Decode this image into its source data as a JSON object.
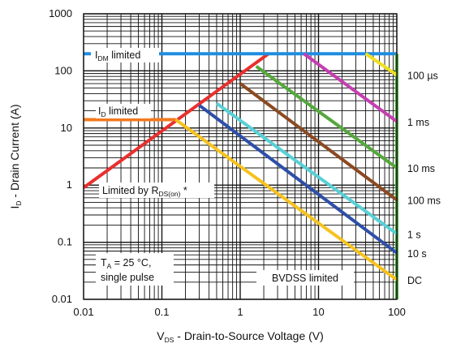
{
  "chart_data": {
    "type": "line",
    "x_scale": "log",
    "y_scale": "log",
    "xlim": [
      0.01,
      100
    ],
    "ylim": [
      0.01,
      1000
    ],
    "x_ticks": [
      "0.01",
      "0.1",
      "1",
      "10",
      "100"
    ],
    "y_ticks": [
      "1000",
      "100",
      "10",
      "1",
      "0.1",
      "0.01"
    ],
    "grid": true,
    "xlabel": {
      "main": "V",
      "sub": "DS",
      "rest": " - Drain-to-Source Voltage (V)"
    },
    "ylabel": {
      "main": "I",
      "sub": "D",
      "rest": " - Drain Current (A)"
    },
    "annotations": {
      "idm": {
        "main": "I",
        "sub": "DM",
        "rest": " limited"
      },
      "id": {
        "main": "I",
        "sub": "D",
        "rest": " limited"
      },
      "rds": {
        "main": "Limited by R",
        "sub": "DS(on)",
        "rest": " *"
      },
      "ta_line1": {
        "main": "T",
        "sub": "A",
        "rest": " = 25 °C,"
      },
      "ta_line2": "single pulse",
      "bvdss": "BVDSS limited"
    },
    "right_labels": [
      "100 µs",
      "1 ms",
      "10 ms",
      "100 ms",
      "1 s",
      "10 s",
      "DC"
    ],
    "series": [
      {
        "name": "",
        "color": "#e8302e",
        "points": [
          [
            0.01,
            0.9
          ],
          [
            2.3,
            200
          ]
        ]
      },
      {
        "name": "",
        "color": "#1f8de0",
        "points": [
          [
            0.01,
            200
          ],
          [
            100,
            200
          ]
        ]
      },
      {
        "name": "",
        "color": "#f27a1e",
        "points": [
          [
            0.01,
            14
          ],
          [
            0.15,
            14
          ]
        ]
      },
      {
        "name": "",
        "color": "#4caa3c",
        "points": [
          [
            100,
            200
          ],
          [
            100,
            0.01
          ]
        ]
      },
      {
        "name": "100 µs",
        "color": "#f0e020",
        "points": [
          [
            40,
            200
          ],
          [
            100,
            85
          ]
        ]
      },
      {
        "name": "1 ms",
        "color": "#c43fb0",
        "points": [
          [
            6.5,
            200
          ],
          [
            100,
            13
          ]
        ]
      },
      {
        "name": "10 ms",
        "color": "#55a83c",
        "points": [
          [
            1.6,
            120
          ],
          [
            100,
            2.0
          ]
        ]
      },
      {
        "name": "100 ms",
        "color": "#8b4a22",
        "points": [
          [
            1.0,
            60
          ],
          [
            100,
            0.55
          ]
        ]
      },
      {
        "name": "1 s",
        "color": "#58d0d6",
        "points": [
          [
            0.5,
            27
          ],
          [
            100,
            0.14
          ]
        ]
      },
      {
        "name": "10 s",
        "color": "#2e4fa8",
        "points": [
          [
            0.3,
            25
          ],
          [
            100,
            0.065
          ]
        ]
      },
      {
        "name": "DC",
        "color": "#f7c21e",
        "points": [
          [
            0.15,
            14
          ],
          [
            100,
            0.022
          ]
        ]
      }
    ]
  }
}
